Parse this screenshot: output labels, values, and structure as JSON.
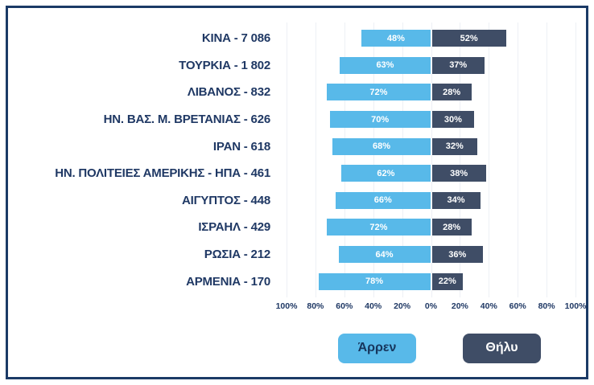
{
  "chart_data": {
    "type": "bar",
    "orientation": "diverging-horizontal",
    "title": "",
    "categories": [
      "ΚΙΝΑ - 7 086",
      "ΤΟΥΡΚΙΑ - 1 802",
      "ΛΙΒΑΝΟΣ - 832",
      "ΗΝ. ΒΑΣ. Μ. ΒΡΕΤΑΝΙΑΣ - 626",
      "ΙΡΑΝ - 618",
      "ΗΝ. ΠΟΛΙΤΕΙΕΣ ΑΜΕΡΙΚΗΣ - ΗΠΑ - 461",
      "ΑΙΓΥΠΤΟΣ - 448",
      "ΙΣΡΑΗΛ - 429",
      "ΡΩΣΙΑ - 212",
      "ΑΡΜΕΝΙΑ - 170"
    ],
    "series": [
      {
        "name": "Άρρεν",
        "color": "#58b9e9",
        "values": [
          48,
          63,
          72,
          70,
          68,
          62,
          66,
          72,
          64,
          78
        ]
      },
      {
        "name": "Θήλυ",
        "color": "#3f4d66",
        "values": [
          52,
          37,
          28,
          30,
          32,
          38,
          34,
          28,
          36,
          22
        ]
      }
    ],
    "value_suffix": "%",
    "axis_ticks": [
      "100%",
      "80%",
      "60%",
      "40%",
      "20%",
      "0%",
      "20%",
      "40%",
      "60%",
      "80%",
      "100%"
    ],
    "xlim": [
      -100,
      100
    ],
    "grid": true,
    "legend_position": "bottom"
  },
  "colors": {
    "frame_border": "#1b3a66",
    "category_label": "#1f3864",
    "axis_label": "#1f3864",
    "male_bar": "#58b9e9",
    "female_bar": "#3f4d66",
    "bar_value_text": "#ffffff"
  }
}
